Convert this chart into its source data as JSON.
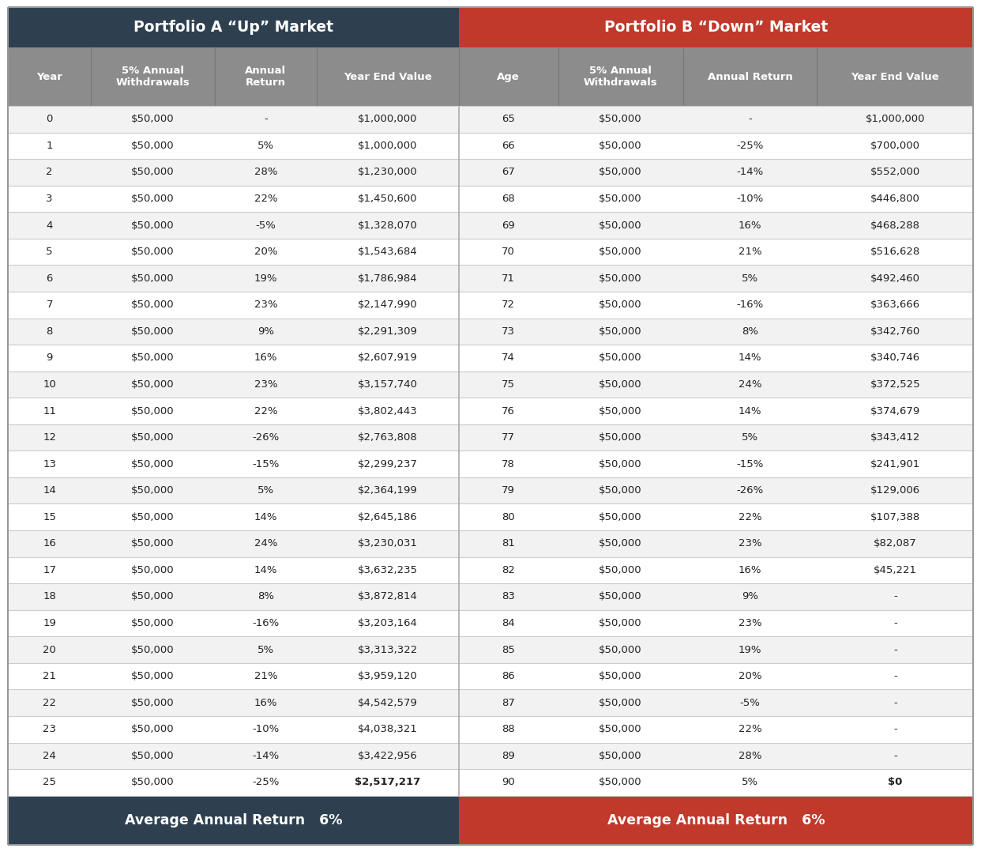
{
  "title_a": "Portfolio A “Up” Market",
  "title_b": "Portfolio B “Down” Market",
  "footer_a": "Average Annual Return   6%",
  "footer_b": "Average Annual Return   6%",
  "col_headers": [
    "Year",
    "5% Annual\nWithdrawals",
    "Annual\nReturn",
    "Year End Value",
    "Age",
    "5% Annual\nWithdrawals",
    "Annual Return",
    "Year End Value"
  ],
  "color_header_a": "#2e4050",
  "color_header_b": "#c0392b",
  "color_subheader": "#8c8c8c",
  "color_row_odd": "#f2f2f2",
  "color_row_even": "#ffffff",
  "color_text": "#222222",
  "color_white": "#ffffff",
  "color_border": "#cccccc",
  "color_mid_border": "#aaaaaa",
  "rows": [
    [
      "0",
      "$50,000",
      "-",
      "$1,000,000",
      "65",
      "$50,000",
      "-",
      "$1,000,000"
    ],
    [
      "1",
      "$50,000",
      "5%",
      "$1,000,000",
      "66",
      "$50,000",
      "-25%",
      "$700,000"
    ],
    [
      "2",
      "$50,000",
      "28%",
      "$1,230,000",
      "67",
      "$50,000",
      "-14%",
      "$552,000"
    ],
    [
      "3",
      "$50,000",
      "22%",
      "$1,450,600",
      "68",
      "$50,000",
      "-10%",
      "$446,800"
    ],
    [
      "4",
      "$50,000",
      "-5%",
      "$1,328,070",
      "69",
      "$50,000",
      "16%",
      "$468,288"
    ],
    [
      "5",
      "$50,000",
      "20%",
      "$1,543,684",
      "70",
      "$50,000",
      "21%",
      "$516,628"
    ],
    [
      "6",
      "$50,000",
      "19%",
      "$1,786,984",
      "71",
      "$50,000",
      "5%",
      "$492,460"
    ],
    [
      "7",
      "$50,000",
      "23%",
      "$2,147,990",
      "72",
      "$50,000",
      "-16%",
      "$363,666"
    ],
    [
      "8",
      "$50,000",
      "9%",
      "$2,291,309",
      "73",
      "$50,000",
      "8%",
      "$342,760"
    ],
    [
      "9",
      "$50,000",
      "16%",
      "$2,607,919",
      "74",
      "$50,000",
      "14%",
      "$340,746"
    ],
    [
      "10",
      "$50,000",
      "23%",
      "$3,157,740",
      "75",
      "$50,000",
      "24%",
      "$372,525"
    ],
    [
      "11",
      "$50,000",
      "22%",
      "$3,802,443",
      "76",
      "$50,000",
      "14%",
      "$374,679"
    ],
    [
      "12",
      "$50,000",
      "-26%",
      "$2,763,808",
      "77",
      "$50,000",
      "5%",
      "$343,412"
    ],
    [
      "13",
      "$50,000",
      "-15%",
      "$2,299,237",
      "78",
      "$50,000",
      "-15%",
      "$241,901"
    ],
    [
      "14",
      "$50,000",
      "5%",
      "$2,364,199",
      "79",
      "$50,000",
      "-26%",
      "$129,006"
    ],
    [
      "15",
      "$50,000",
      "14%",
      "$2,645,186",
      "80",
      "$50,000",
      "22%",
      "$107,388"
    ],
    [
      "16",
      "$50,000",
      "24%",
      "$3,230,031",
      "81",
      "$50,000",
      "23%",
      "$82,087"
    ],
    [
      "17",
      "$50,000",
      "14%",
      "$3,632,235",
      "82",
      "$50,000",
      "16%",
      "$45,221"
    ],
    [
      "18",
      "$50,000",
      "8%",
      "$3,872,814",
      "83",
      "$50,000",
      "9%",
      "-"
    ],
    [
      "19",
      "$50,000",
      "-16%",
      "$3,203,164",
      "84",
      "$50,000",
      "23%",
      "-"
    ],
    [
      "20",
      "$50,000",
      "5%",
      "$3,313,322",
      "85",
      "$50,000",
      "19%",
      "-"
    ],
    [
      "21",
      "$50,000",
      "21%",
      "$3,959,120",
      "86",
      "$50,000",
      "20%",
      "-"
    ],
    [
      "22",
      "$50,000",
      "16%",
      "$4,542,579",
      "87",
      "$50,000",
      "-5%",
      "-"
    ],
    [
      "23",
      "$50,000",
      "-10%",
      "$4,038,321",
      "88",
      "$50,000",
      "22%",
      "-"
    ],
    [
      "24",
      "$50,000",
      "-14%",
      "$3,422,956",
      "89",
      "$50,000",
      "28%",
      "-"
    ],
    [
      "25",
      "$50,000",
      "-25%",
      "$2,517,217",
      "90",
      "$50,000",
      "5%",
      "$0"
    ]
  ],
  "figsize": [
    12.42,
    10.78
  ],
  "dpi": 100
}
